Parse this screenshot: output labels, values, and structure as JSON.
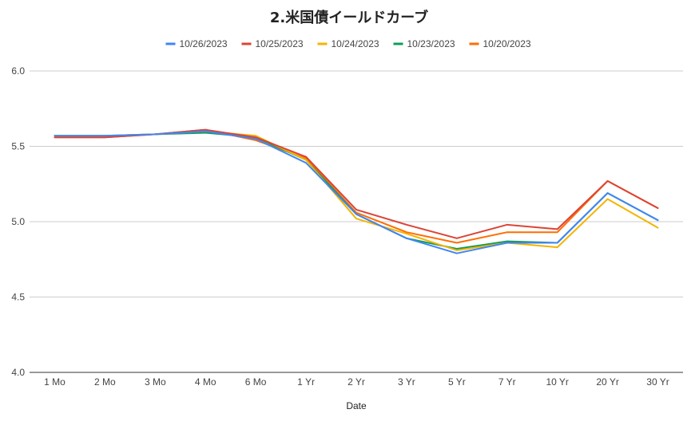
{
  "chart_data": {
    "type": "line",
    "title": "2.米国債イールドカーブ",
    "xlabel": "Date",
    "ylabel": "",
    "categories": [
      "1 Mo",
      "2 Mo",
      "3 Mo",
      "4 Mo",
      "6 Mo",
      "1 Yr",
      "2 Yr",
      "3 Yr",
      "5 Yr",
      "7 Yr",
      "10 Yr",
      "20 Yr",
      "30 Yr"
    ],
    "ylim": [
      4.0,
      6.0
    ],
    "yticks": [
      "4.0",
      "4.5",
      "5.0",
      "5.5",
      "6.0"
    ],
    "grid": true,
    "legend_position": "top",
    "series": [
      {
        "name": "10/26/2023",
        "color": "#4285F4",
        "values": [
          5.57,
          5.57,
          5.58,
          5.6,
          5.55,
          5.39,
          5.05,
          4.89,
          4.79,
          4.86,
          4.86,
          5.19,
          5.01
        ]
      },
      {
        "name": "10/25/2023",
        "color": "#DB4437",
        "values": [
          5.56,
          5.56,
          5.58,
          5.61,
          5.56,
          5.43,
          5.08,
          4.98,
          4.89,
          4.98,
          4.95,
          5.27,
          5.09
        ]
      },
      {
        "name": "10/24/2023",
        "color": "#F4B400",
        "values": [
          5.57,
          5.57,
          5.58,
          5.6,
          5.57,
          5.41,
          5.02,
          4.92,
          4.81,
          4.86,
          4.83,
          5.15,
          4.96
        ]
      },
      {
        "name": "10/23/2023",
        "color": "#0F9D58",
        "values": [
          5.57,
          5.57,
          5.58,
          5.59,
          5.56,
          5.41,
          5.05,
          4.89,
          4.82,
          4.87,
          4.86,
          5.19,
          5.01
        ]
      },
      {
        "name": "10/20/2023",
        "color": "#FF6D01",
        "values": [
          5.56,
          5.56,
          5.58,
          5.61,
          5.54,
          5.42,
          5.06,
          4.93,
          4.86,
          4.93,
          4.93,
          5.27,
          5.09
        ]
      }
    ]
  }
}
